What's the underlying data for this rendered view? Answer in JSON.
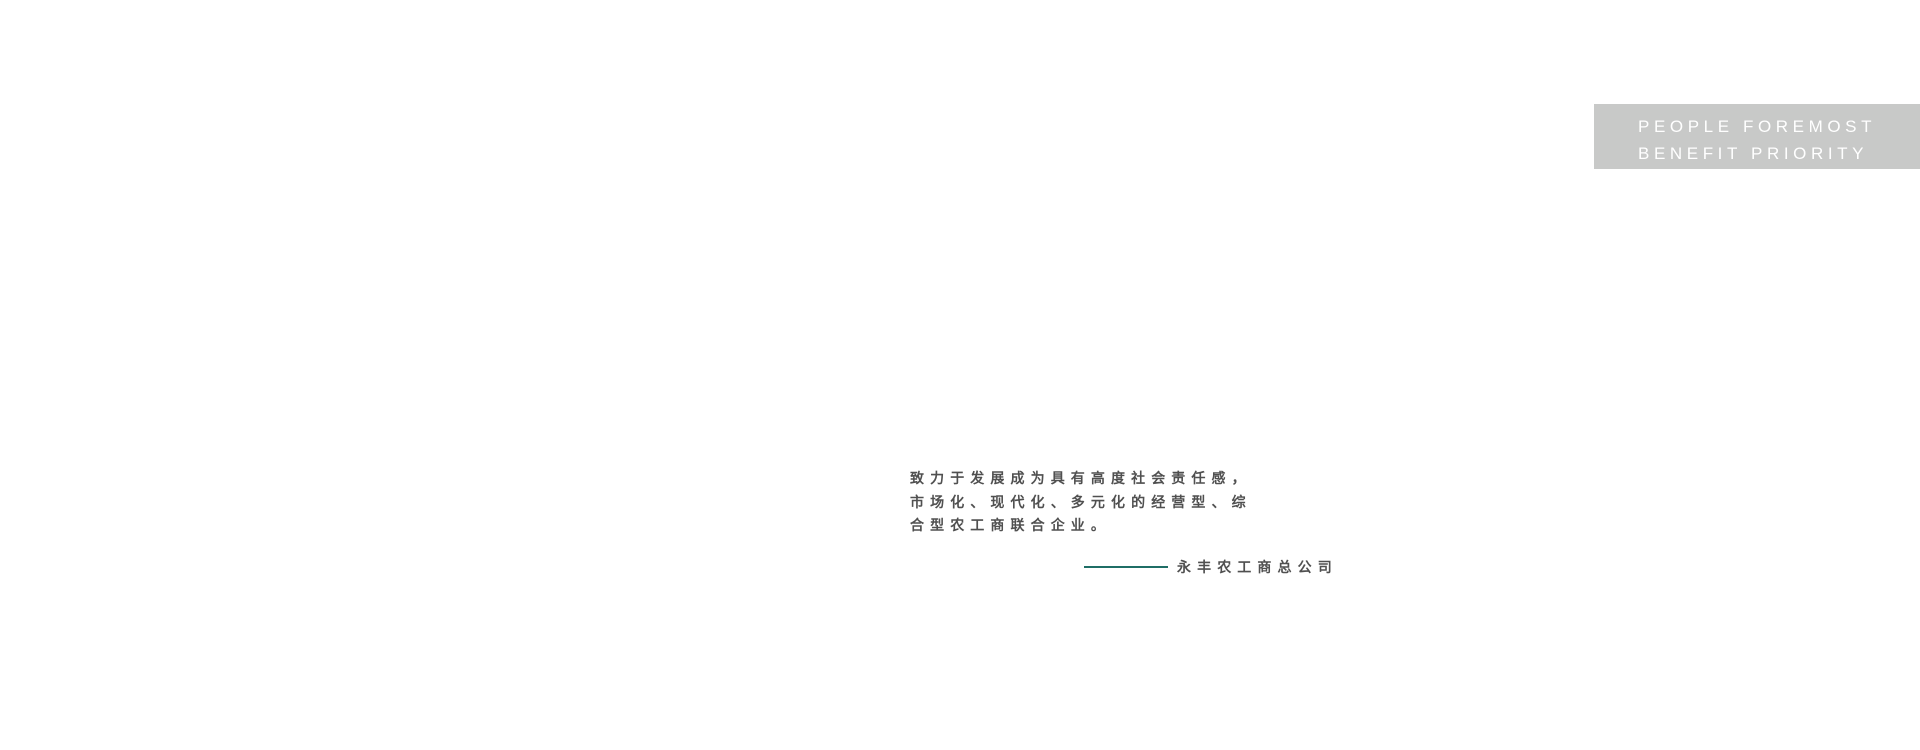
{
  "badge": {
    "lines": [
      "PEOPLE FOREMOST",
      "BENEFIT PRIORITY"
    ],
    "background": "#c8c9c8"
  },
  "slogan": {
    "lines": [
      "致力于发展成为具有高度社会责任感，",
      "市场化、现代化、多元化的经营型、综",
      "合型农工商联合企业。"
    ]
  },
  "signature": {
    "company": "永丰农工商总公司",
    "line_color": "#1f6e66"
  }
}
